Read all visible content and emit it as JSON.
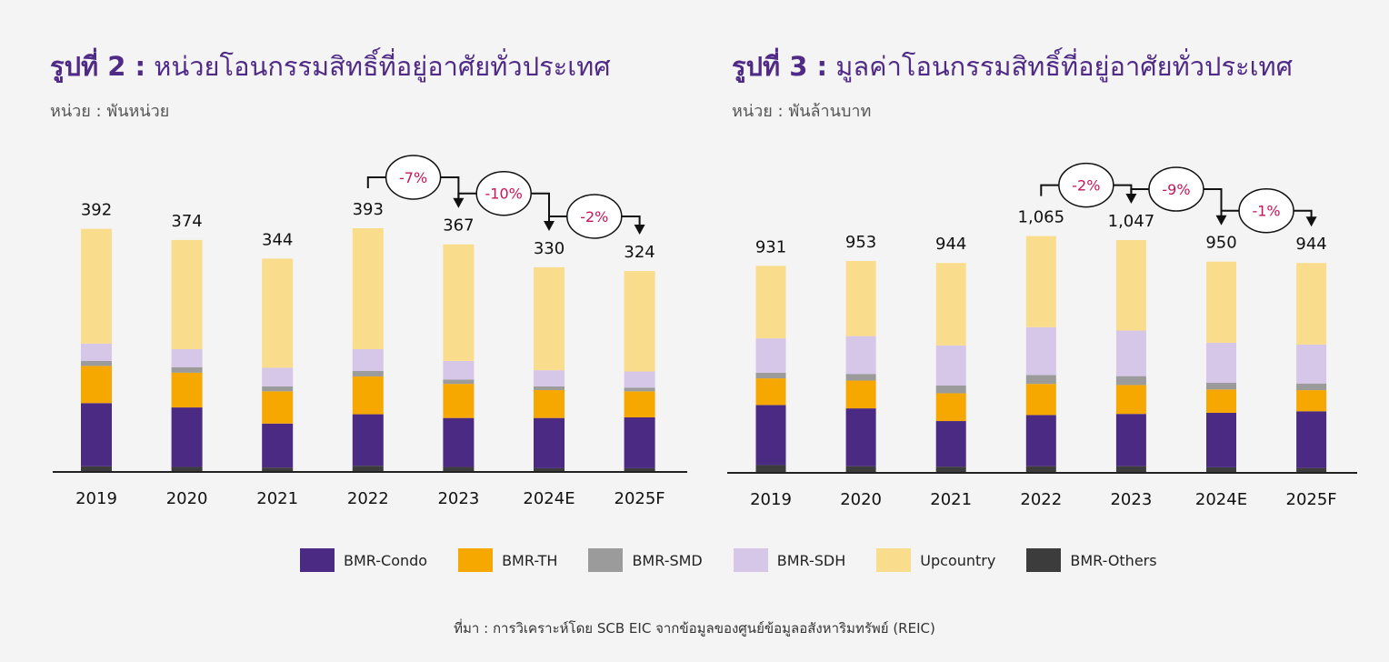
{
  "charts": [
    {
      "fig": "รูปที่ 2 :",
      "title": "หน่วยโอนกรรมสิทธิ์ที่อยู่อาศัยทั่วประเทศ",
      "unit": "หน่วย : พันหน่วย"
    },
    {
      "fig": "รูปที่ 3 :",
      "title": "มูลค่าโอนกรรมสิทธิ์ที่อยู่อาศัยทั่วประเทศ",
      "unit": "หน่วย : พันล้านบาท"
    }
  ],
  "legend": [
    {
      "name": "BMR-Condo",
      "color": "#4b2a83"
    },
    {
      "name": "BMR-TH",
      "color": "#f6a800"
    },
    {
      "name": "BMR-SMD",
      "color": "#9b9b9b"
    },
    {
      "name": "BMR-SDH",
      "color": "#d6c6e8"
    },
    {
      "name": "Upcountry",
      "color": "#fadd8c"
    },
    {
      "name": "BMR-Others",
      "color": "#3c3c3c"
    }
  ],
  "source": "ที่มา : การวิเคราะห์โดย SCB EIC จากข้อมูลของศูนย์ข้อมูลอสังหาริมทรัพย์ (REIC)",
  "chart_data": [
    {
      "type": "bar",
      "stacked": true,
      "title": "หน่วยโอนกรรมสิทธิ์ที่อยู่อาศัยทั่วประเทศ",
      "ylabel": "หน่วย : พันหน่วย",
      "categories": [
        "2019",
        "2020",
        "2021",
        "2022",
        "2023",
        "2024E",
        "2025F"
      ],
      "totals_labels": [
        "392",
        "374",
        "344",
        "393",
        "367",
        "330",
        "324"
      ],
      "ylim": [
        0,
        400
      ],
      "series": [
        {
          "name": "BMR-Others",
          "color": "#3c3c3c",
          "values": [
            9,
            8,
            7,
            10,
            8,
            6,
            6
          ]
        },
        {
          "name": "BMR-Condo",
          "color": "#4b2a83",
          "values": [
            102,
            96,
            71,
            83,
            79,
            81,
            82
          ]
        },
        {
          "name": "BMR-TH",
          "color": "#f6a800",
          "values": [
            60,
            56,
            52,
            61,
            55,
            45,
            42
          ]
        },
        {
          "name": "BMR-SMD",
          "color": "#9b9b9b",
          "values": [
            8,
            9,
            8,
            9,
            7,
            6,
            6
          ]
        },
        {
          "name": "BMR-SDH",
          "color": "#d6c6e8",
          "values": [
            28,
            29,
            30,
            35,
            30,
            26,
            26
          ]
        },
        {
          "name": "Upcountry",
          "color": "#fadd8c",
          "values": [
            185,
            176,
            176,
            195,
            188,
            166,
            162
          ]
        }
      ],
      "annotations": [
        {
          "from": 3,
          "to": 4,
          "text": "-7%"
        },
        {
          "from": 4,
          "to": 5,
          "text": "-10%"
        },
        {
          "from": 5,
          "to": 6,
          "text": "-2%"
        }
      ]
    },
    {
      "type": "bar",
      "stacked": true,
      "title": "มูลค่าโอนกรรมสิทธิ์ที่อยู่อาศัยทั่วประเทศ",
      "ylabel": "หน่วย : พันล้านบาท",
      "categories": [
        "2019",
        "2020",
        "2021",
        "2022",
        "2023",
        "2024E",
        "2025F"
      ],
      "totals_labels": [
        "931",
        "953",
        "944",
        "1,065",
        "1,047",
        "950",
        "944"
      ],
      "ylim": [
        0,
        1100
      ],
      "series": [
        {
          "name": "BMR-Others",
          "color": "#3c3c3c",
          "values": [
            35,
            30,
            28,
            30,
            30,
            25,
            22
          ]
        },
        {
          "name": "BMR-Condo",
          "color": "#4b2a83",
          "values": [
            270,
            260,
            205,
            230,
            235,
            245,
            255
          ]
        },
        {
          "name": "BMR-TH",
          "color": "#f6a800",
          "values": [
            120,
            125,
            125,
            140,
            130,
            105,
            95
          ]
        },
        {
          "name": "BMR-SMD",
          "color": "#9b9b9b",
          "values": [
            25,
            30,
            35,
            40,
            40,
            30,
            30
          ]
        },
        {
          "name": "BMR-SDH",
          "color": "#d6c6e8",
          "values": [
            155,
            170,
            180,
            215,
            205,
            180,
            175
          ]
        },
        {
          "name": "Upcountry",
          "color": "#fadd8c",
          "values": [
            326,
            338,
            371,
            410,
            407,
            365,
            367
          ]
        }
      ],
      "annotations": [
        {
          "from": 3,
          "to": 4,
          "text": "-2%"
        },
        {
          "from": 4,
          "to": 5,
          "text": "-9%"
        },
        {
          "from": 5,
          "to": 6,
          "text": "-1%"
        }
      ]
    }
  ]
}
